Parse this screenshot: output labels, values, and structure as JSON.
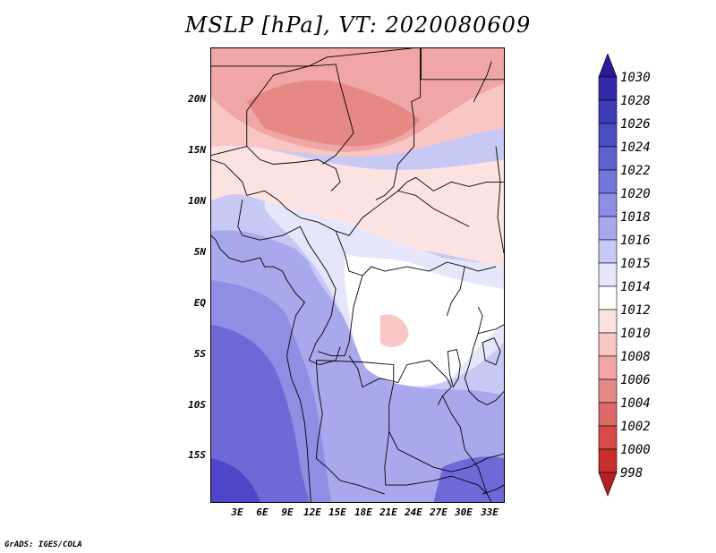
{
  "title": "MSLP [hPa], VT: 2020080609",
  "footer": "GrADS: IGES/COLA",
  "lat_labels": [
    "20N",
    "15N",
    "10N",
    "5N",
    "EQ",
    "5S",
    "10S",
    "15S"
  ],
  "lon_labels": [
    "3E",
    "6E",
    "9E",
    "12E",
    "15E",
    "18E",
    "21E",
    "24E",
    "27E",
    "30E",
    "33E"
  ],
  "colorbar": {
    "labels": [
      "1030",
      "1028",
      "1026",
      "1024",
      "1022",
      "1020",
      "1018",
      "1016",
      "1015",
      "1014",
      "1012",
      "1010",
      "1008",
      "1006",
      "1004",
      "1002",
      "1000",
      "998"
    ],
    "colors": [
      "#2a1a98",
      "#332aa8",
      "#3d3cb6",
      "#4b4dc2",
      "#5e61ce",
      "#7476da",
      "#8d8ee4",
      "#a8a9ec",
      "#c8c8f4",
      "#e6e6fa",
      "#ffffff",
      "#fde2e2",
      "#f8c6c4",
      "#f0a6a4",
      "#e58886",
      "#dd6a68",
      "#d64a48",
      "#c82e2c",
      "#b52020"
    ]
  },
  "map_colors": {
    "deep_blue": "#4e46c8",
    "blue": "#6d6ad8",
    "mid_blue": "#8d8ee4",
    "light_blue": "#a8a9ec",
    "pale_blue": "#c8c8f4",
    "lavender": "#e6e6fa",
    "white": "#ffffff",
    "pale_pink": "#fde2e2",
    "light_pink": "#f8c6c4",
    "pink": "#f0a6a4",
    "salmon": "#e58886"
  }
}
